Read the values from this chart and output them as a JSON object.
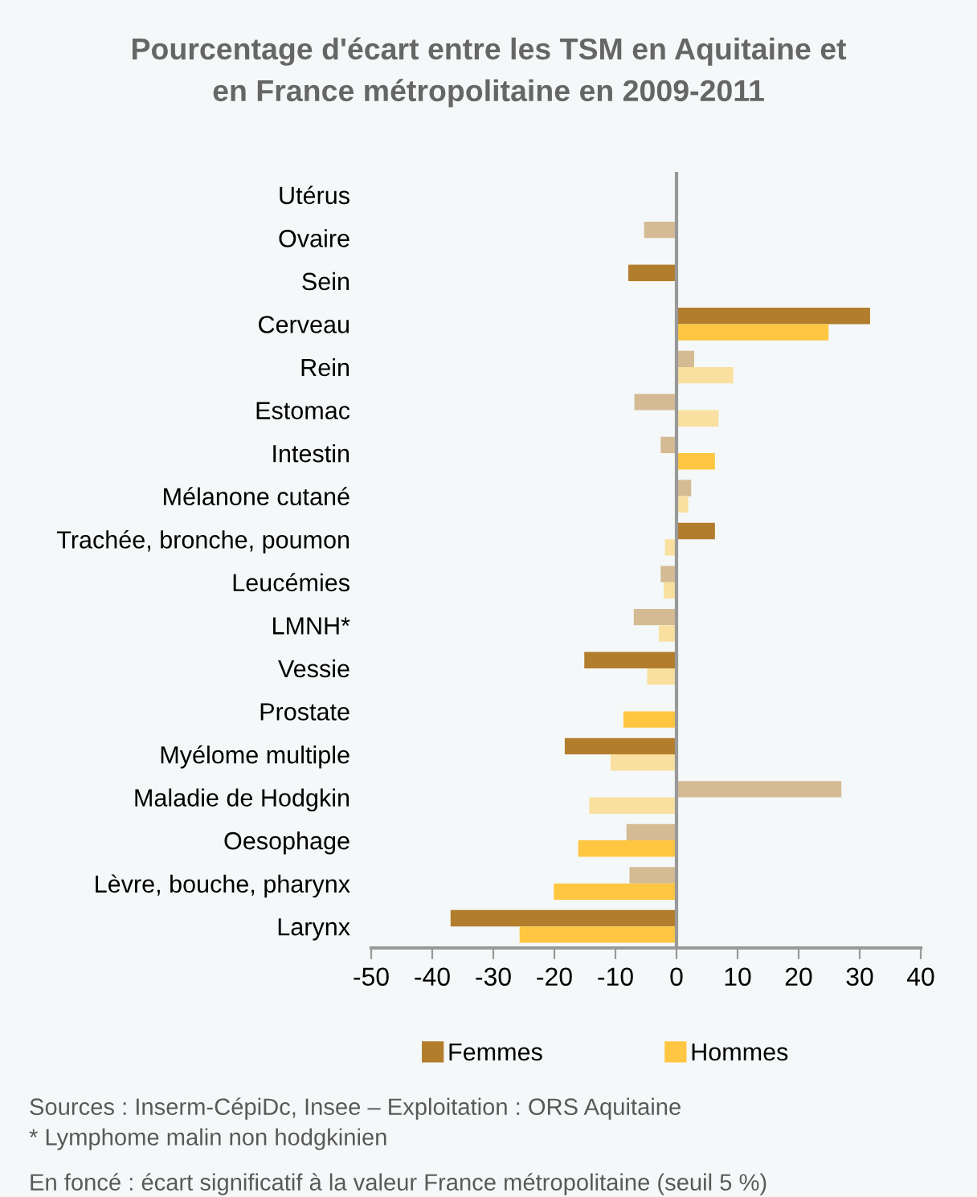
{
  "chart_data": {
    "type": "bar",
    "orientation": "horizontal",
    "title": "Pourcentage d'écart entre les TSM en Aquitaine et\nen France métropolitaine en 2009-2011",
    "categories": [
      "Utérus",
      "Ovaire",
      "Sein",
      "Cerveau",
      "Rein",
      "Estomac",
      "Intestin",
      "Mélanone cutané",
      "Trachée, bronche, poumon",
      "Leucémies",
      "LMNH*",
      "Vessie",
      "Prostate",
      "Myélome multiple",
      "Maladie de Hodgkin",
      "Oesophage",
      "Lèvre, bouche, pharynx",
      "Larynx"
    ],
    "series": [
      {
        "name": "Femmes",
        "color": "#b27d2d",
        "values": [
          null,
          -5.3,
          -7.9,
          31.7,
          2.9,
          -6.9,
          -2.6,
          2.4,
          6.3,
          -2.6,
          -7.0,
          -15.1,
          null,
          -18.3,
          27.0,
          -8.2,
          -7.7,
          -37.0
        ],
        "colors": [
          "#b27d2d",
          "#d4bb94",
          "#b27d2d",
          "#b27d2d",
          "#d4bb94",
          "#d4bb94",
          "#d4bb94",
          "#d4bb94",
          "#b27d2d",
          "#d4bb94",
          "#d4bb94",
          "#b27d2d",
          "#b27d2d",
          "#b27d2d",
          "#d4bb94",
          "#d4bb94",
          "#d4bb94",
          "#b27d2d"
        ]
      },
      {
        "name": "Hommes",
        "color": "#ffc641",
        "values": [
          null,
          null,
          null,
          24.9,
          9.3,
          6.9,
          6.3,
          1.9,
          -1.9,
          -2.1,
          -2.9,
          -4.8,
          -8.7,
          -10.8,
          -14.3,
          -16.1,
          -20.1,
          -25.7
        ],
        "colors": [
          "#ffc641",
          "#ffc641",
          "#ffc641",
          "#ffc641",
          "#f9e0a0",
          "#f9e0a0",
          "#ffc641",
          "#f9e0a0",
          "#f9e0a0",
          "#f9e0a0",
          "#f9e0a0",
          "#f9e0a0",
          "#ffc641",
          "#f9e0a0",
          "#f9e0a0",
          "#ffc641",
          "#ffc641",
          "#ffc641"
        ]
      }
    ],
    "xlim": [
      -50,
      40
    ],
    "xticks": [
      -50,
      -40,
      -30,
      -20,
      -10,
      0,
      10,
      20,
      30,
      40
    ],
    "legend": "bottom",
    "annotations": [
      "Sources : Inserm-CépiDc, Insee – Exploitation : ORS Aquitaine",
      "* Lymphome malin non hodgkinien",
      "En foncé : écart significatif à la valeur France métropolitaine (seuil 5 %)"
    ]
  }
}
